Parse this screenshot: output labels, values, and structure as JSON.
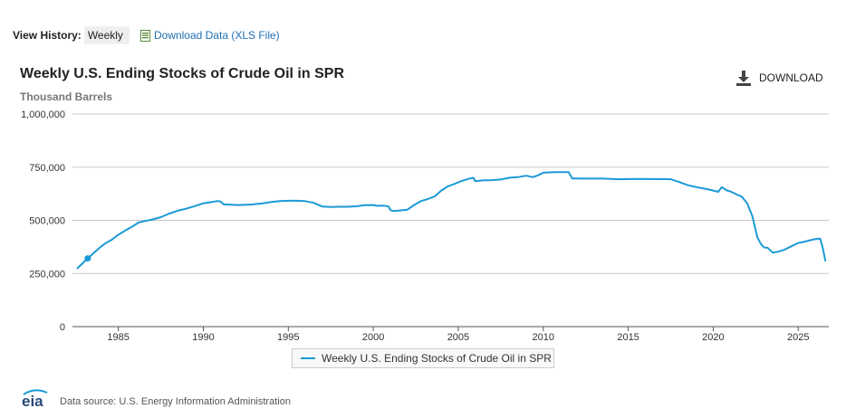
{
  "toolbar": {
    "view_history_label": "View History:",
    "view_history_value": "Weekly",
    "download_data_label": "Download Data (XLS File)",
    "xls_icon": "xls-file-icon"
  },
  "download_button": {
    "label": "DOWNLOAD",
    "icon": "download-icon"
  },
  "footer": {
    "logo_text": "eia",
    "source": "Data source: U.S. Energy Information Administration"
  },
  "colors": {
    "series": "#1b9ad6",
    "grid": "#c8c8c8",
    "axis_text": "#333333"
  },
  "chart_data": {
    "type": "line",
    "title": "Weekly U.S. Ending Stocks of Crude Oil in SPR",
    "subtitle": "Thousand Barrels",
    "xlabel": "",
    "ylabel": "",
    "xlim": [
      1982.3,
      2026.8
    ],
    "ylim": [
      0,
      1000000
    ],
    "x_ticks": [
      1985,
      1990,
      1995,
      2000,
      2005,
      2010,
      2015,
      2020,
      2025
    ],
    "x_tick_labels": [
      "1985",
      "1990",
      "1995",
      "2000",
      "2005",
      "2010",
      "2015",
      "2020",
      "2025"
    ],
    "y_ticks": [
      0,
      250000,
      500000,
      750000,
      1000000
    ],
    "y_tick_labels": [
      "0",
      "250,000",
      "500,000",
      "750,000",
      "1,000,000"
    ],
    "grid": true,
    "legend_position": "bottom-center",
    "series": [
      {
        "name": "Weekly U.S. Ending Stocks of Crude Oil in SPR",
        "marker": {
          "x": 1983.2,
          "y": 321000
        },
        "x": [
          1982.6,
          1983.2,
          1983.6,
          1984.0,
          1984.3,
          1984.6,
          1985.0,
          1985.4,
          1985.8,
          1986.2,
          1986.6,
          1987.0,
          1987.5,
          1988.0,
          1988.5,
          1989.0,
          1989.5,
          1990.0,
          1990.5,
          1990.8,
          1991.0,
          1991.2,
          1992.0,
          1992.8,
          1993.5,
          1994.0,
          1994.5,
          1995.0,
          1995.5,
          1996.0,
          1996.5,
          1997.0,
          1997.5,
          1998.0,
          1998.5,
          1999.0,
          1999.5,
          2000.0,
          2000.2,
          2000.6,
          2000.9,
          2001.0,
          2001.2,
          2001.5,
          2002.0,
          2002.4,
          2002.8,
          2003.2,
          2003.6,
          2004.0,
          2004.4,
          2004.8,
          2005.2,
          2005.6,
          2005.9,
          2006.0,
          2006.5,
          2007.0,
          2007.5,
          2008.0,
          2008.5,
          2009.0,
          2009.4,
          2009.7,
          2010.0,
          2010.5,
          2011.0,
          2011.5,
          2011.7,
          2012.5,
          2013.5,
          2014.5,
          2015.5,
          2016.5,
          2017.5,
          2018.0,
          2018.5,
          2019.0,
          2019.5,
          2020.0,
          2020.3,
          2020.5,
          2020.8,
          2021.0,
          2021.3,
          2021.7,
          2022.0,
          2022.3,
          2022.6,
          2022.8,
          2023.0,
          2023.2,
          2023.5,
          2023.8,
          2024.2,
          2024.6,
          2025.0,
          2025.4,
          2025.8,
          2026.1,
          2026.3,
          2026.45,
          2026.6
        ],
        "y": [
          275000,
          321000,
          350000,
          378000,
          395000,
          408000,
          432000,
          452000,
          470000,
          490000,
          497000,
          504000,
          515000,
          532000,
          545000,
          555000,
          567000,
          580000,
          586000,
          590000,
          589000,
          575000,
          572000,
          574000,
          580000,
          586000,
          590000,
          592000,
          592000,
          590000,
          582000,
          565000,
          563000,
          564000,
          564000,
          566000,
          571000,
          572000,
          568000,
          569000,
          565000,
          548000,
          544000,
          546000,
          550000,
          572000,
          590000,
          600000,
          612000,
          640000,
          660000,
          672000,
          685000,
          695000,
          700000,
          684000,
          688000,
          689000,
          692000,
          700000,
          703000,
          710000,
          703000,
          712000,
          724000,
          726000,
          727000,
          727000,
          697000,
          696000,
          696000,
          693000,
          695000,
          694000,
          693000,
          680000,
          665000,
          656000,
          649000,
          640000,
          634000,
          656000,
          641000,
          636000,
          625000,
          610000,
          580000,
          520000,
          420000,
          390000,
          372000,
          371000,
          348000,
          352000,
          362000,
          378000,
          393000,
          400000,
          408000,
          413000,
          413000,
          370000,
          310000
        ]
      }
    ]
  }
}
